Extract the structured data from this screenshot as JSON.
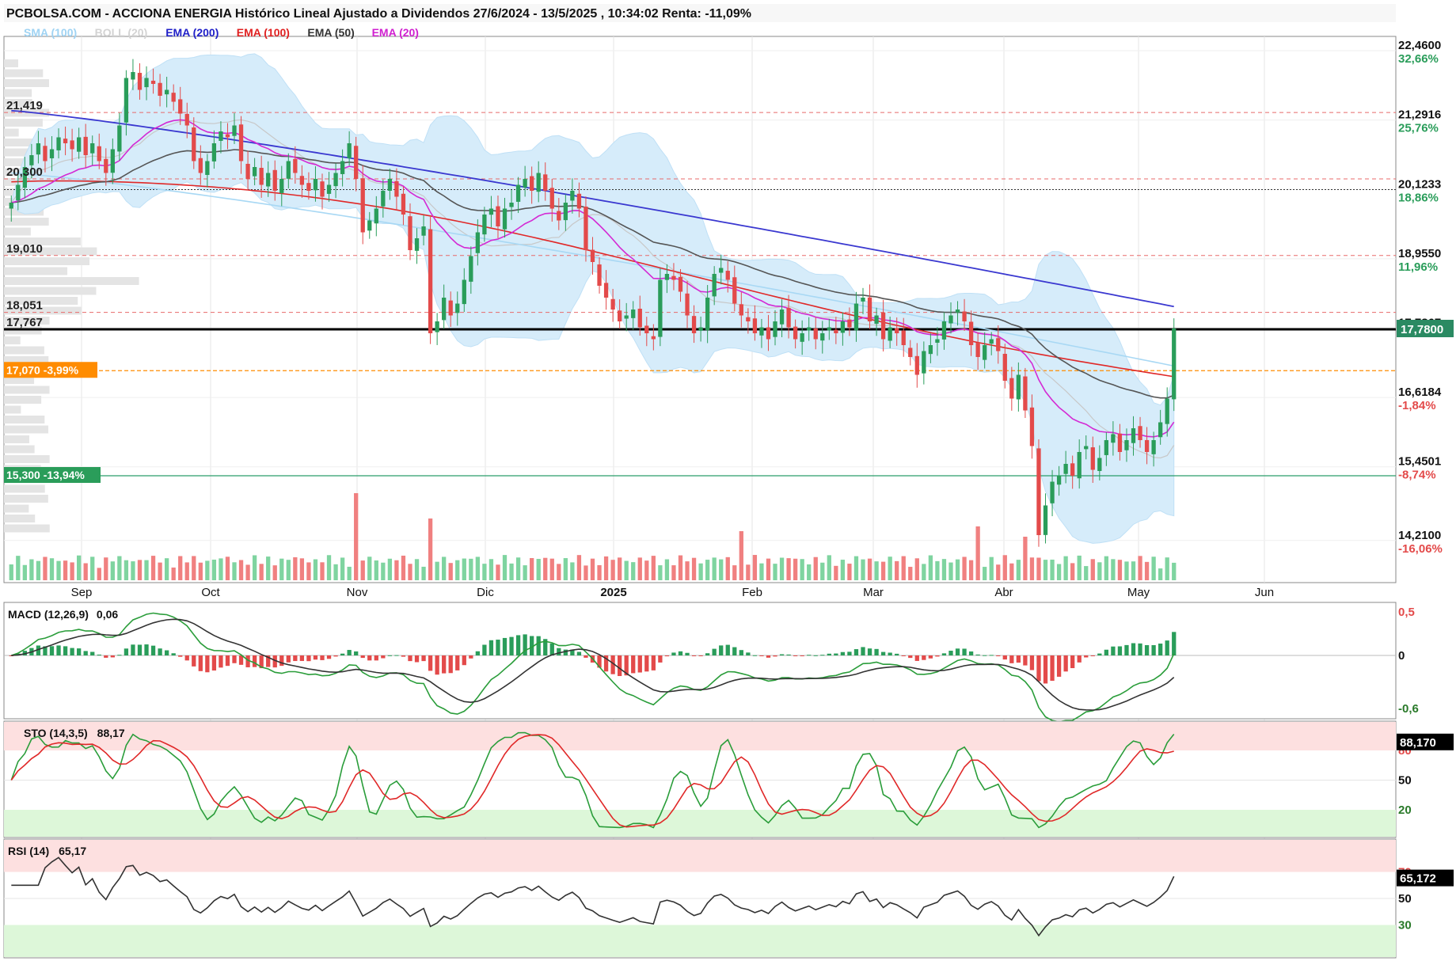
{
  "title": "PCBOLSA.COM - ACCIONA ENERGIA Histórico Lineal Ajustado a Dividendos 27/6/2024 - 13/5/2025 , 10:34:02 Renta: -11,09%",
  "legend": [
    {
      "text": "SMA (100)",
      "color": "#9fd3f3"
    },
    {
      "text": "BOLL (20)",
      "color": "#d3d3d3"
    },
    {
      "text": "EMA (200)",
      "color": "#2020c8"
    },
    {
      "text": "EMA (100)",
      "color": "#e02020"
    },
    {
      "text": "EMA (50)",
      "color": "#333333"
    },
    {
      "text": "EMA (20)",
      "color": "#d020d0"
    }
  ],
  "colors": {
    "up": "#2a9d5a",
    "down": "#e34a4a",
    "vol_up": "#7fd4a0",
    "vol_down": "#f08080",
    "ema200": "#3a38d0",
    "ema100": "#e02828",
    "ema50": "#555555",
    "ema20": "#d42ad4",
    "sma100": "#a8d8f4",
    "boll_fill": "#d6ecfa",
    "last_label_bg": "#2a8a62",
    "orange": "#ff8c00",
    "green_line": "#2a9d6a"
  },
  "price_axis": [
    {
      "price": "22,4600",
      "pct": "32,66%",
      "pct_color": "#2a9d5a"
    },
    {
      "price": "21,2916",
      "pct": "25,76%",
      "pct_color": "#2a9d5a"
    },
    {
      "price": "20,1233",
      "pct": "18,86%",
      "pct_color": "#2a9d5a"
    },
    {
      "price": "18,9550",
      "pct": "11,96%",
      "pct_color": "#2a9d5a"
    },
    {
      "price": "17,7867",
      "pct": "",
      "pct_color": "#2a9d5a"
    },
    {
      "price": "16,6184",
      "pct": "-1,84%",
      "pct_color": "#e34a4a"
    },
    {
      "price": "15,4501",
      "pct": "-8,74%",
      "pct_color": "#e34a4a"
    },
    {
      "price": "14,2100",
      "pct": "-16,06%",
      "pct_color": "#e34a4a"
    }
  ],
  "last_price_label": "17,7800",
  "left_levels": [
    "21,419",
    "20,300",
    "19,010",
    "18,051",
    "17,767"
  ],
  "reference_labels": [
    {
      "text": "17,070  -3,99%",
      "kind": "orange"
    },
    {
      "text": "15,300  -13,94%",
      "kind": "green"
    }
  ],
  "months": [
    "Sep",
    "Oct",
    "Nov",
    "Dic",
    "2025",
    "Feb",
    "Mar",
    "Abr",
    "May",
    "Jun"
  ],
  "macd": {
    "label": "MACD (12,26,9)",
    "value": "0,06",
    "axis": [
      "0,5",
      "0",
      "-0,6"
    ]
  },
  "sto": {
    "label": "STO (14,3,5)",
    "value": "88,17",
    "axis": [
      "80",
      "50",
      "20"
    ],
    "last": "88,170"
  },
  "rsi": {
    "label": "RSI (14)",
    "value": "65,17",
    "axis": [
      "70",
      "50",
      "30"
    ],
    "last": "65,172"
  },
  "chart_data": {
    "type": "candlestick",
    "title": "PCBOLSA.COM - ACCIONA ENERGIA Histórico Lineal Ajustado a Dividendos 27/6/2024 - 13/5/2025 , 10:34:02 Renta: -11,09%",
    "period": [
      "27/6/2024",
      "13/5/2025"
    ],
    "ylim": [
      13.5,
      22.7
    ],
    "last_close": 17.78,
    "x_months": [
      "Sep",
      "Oct",
      "Nov",
      "Dic",
      "2025",
      "Feb",
      "Mar",
      "Abr",
      "May",
      "Jun"
    ],
    "closes": [
      19.9,
      20.2,
      20.5,
      20.7,
      20.9,
      20.6,
      20.8,
      21.0,
      20.9,
      20.8,
      21.0,
      20.7,
      20.9,
      20.6,
      20.4,
      20.8,
      21.2,
      22.0,
      22.1,
      21.8,
      22.0,
      21.9,
      21.7,
      21.8,
      21.6,
      21.4,
      21.2,
      20.6,
      20.4,
      20.6,
      20.9,
      21.1,
      21.0,
      21.2,
      20.6,
      20.3,
      20.5,
      20.2,
      20.4,
      20.1,
      20.3,
      20.6,
      20.4,
      20.2,
      20.1,
      20.3,
      20.0,
      20.2,
      20.4,
      20.6,
      20.9,
      20.3,
      19.4,
      19.6,
      19.8,
      20.1,
      20.3,
      20.0,
      19.7,
      19.1,
      19.3,
      19.5,
      17.7,
      17.9,
      18.3,
      18.0,
      18.2,
      18.6,
      19.0,
      19.4,
      19.7,
      19.8,
      19.5,
      19.8,
      19.9,
      20.2,
      20.3,
      20.1,
      20.4,
      20.1,
      19.8,
      19.6,
      19.9,
      20.1,
      19.8,
      19.1,
      18.9,
      18.5,
      18.3,
      18.1,
      17.9,
      18.0,
      18.1,
      17.8,
      17.7,
      17.6,
      18.6,
      18.7,
      18.6,
      18.4,
      18.0,
      17.7,
      17.8,
      18.3,
      18.7,
      18.8,
      18.6,
      18.2,
      18.0,
      17.9,
      17.7,
      17.8,
      17.6,
      17.9,
      18.1,
      17.8,
      17.6,
      17.7,
      17.8,
      17.6,
      17.7,
      17.8,
      17.7,
      17.9,
      17.8,
      18.2,
      18.3,
      17.9,
      18.0,
      17.6,
      17.8,
      17.7,
      17.5,
      17.3,
      17.0,
      17.4,
      17.5,
      17.6,
      17.9,
      18.0,
      18.1,
      17.9,
      17.5,
      17.3,
      17.5,
      17.6,
      17.4,
      16.9,
      16.6,
      17.0,
      16.4,
      15.8,
      14.3,
      14.8,
      15.2,
      15.3,
      15.5,
      15.3,
      15.7,
      15.8,
      15.4,
      15.6,
      15.9,
      16.0,
      15.7,
      15.9,
      16.1,
      15.9,
      15.7,
      15.9,
      16.2,
      16.6,
      17.78
    ],
    "macd_last": 0.06,
    "sto_last": 88.17,
    "rsi_last": 65.17
  }
}
